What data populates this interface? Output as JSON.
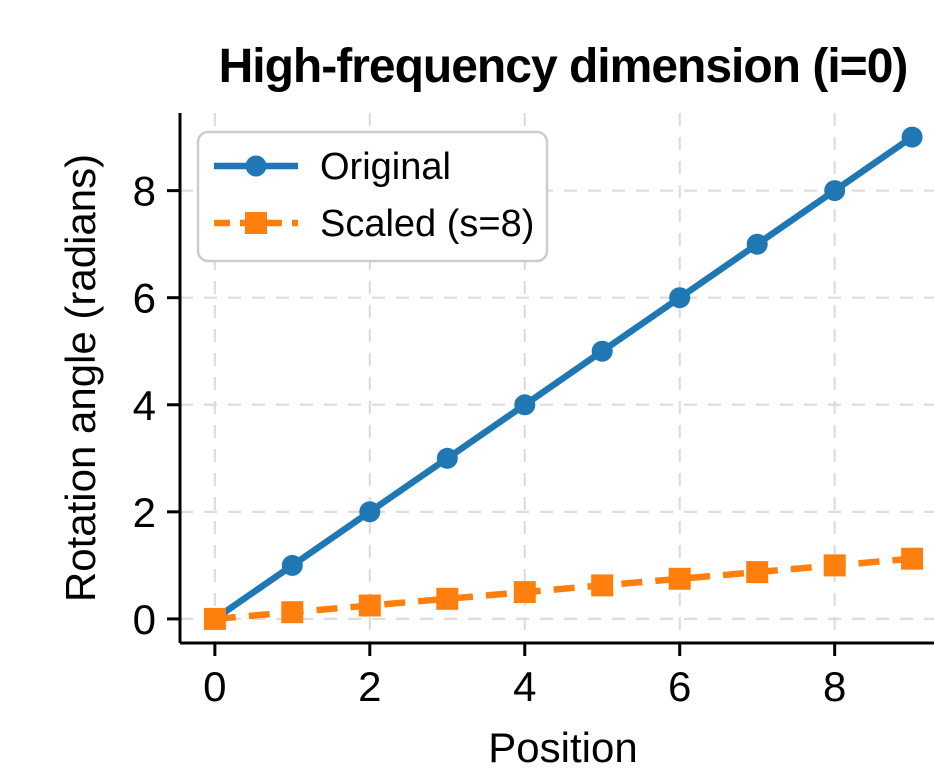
{
  "title": "High-frequency dimension (i=0)",
  "chart_data": {
    "type": "line",
    "title": "High-frequency dimension (i=0)",
    "xlabel": "Position",
    "ylabel": "Rotation angle (radians)",
    "x": [
      0,
      1,
      2,
      3,
      4,
      5,
      6,
      7,
      8,
      9
    ],
    "series": [
      {
        "name": "Original",
        "values": [
          0,
          1,
          2,
          3,
          4,
          5,
          6,
          7,
          8,
          9
        ],
        "color": "#1f77b4",
        "marker": "circle",
        "line_style": "solid"
      },
      {
        "name": "Scaled (s=8)",
        "values": [
          0,
          0.125,
          0.25,
          0.375,
          0.5,
          0.625,
          0.75,
          0.875,
          1.0,
          1.125
        ],
        "color": "#ff7f0e",
        "marker": "square",
        "line_style": "dashed"
      }
    ],
    "xtick_labels": [
      "0",
      "2",
      "4",
      "6",
      "8"
    ],
    "xtick_values": [
      0,
      2,
      4,
      6,
      8
    ],
    "ytick_labels": [
      "0",
      "2",
      "4",
      "6",
      "8"
    ],
    "ytick_values": [
      0,
      2,
      4,
      6,
      8
    ],
    "xlim": [
      -0.45,
      9.45
    ],
    "ylim": [
      -0.45,
      9.45
    ],
    "grid": true,
    "grid_color": "#dddddd",
    "spine_color": "#000000",
    "background": "#ffffff",
    "legend_position": "upper left",
    "legend_border_color": "#cccccc"
  }
}
